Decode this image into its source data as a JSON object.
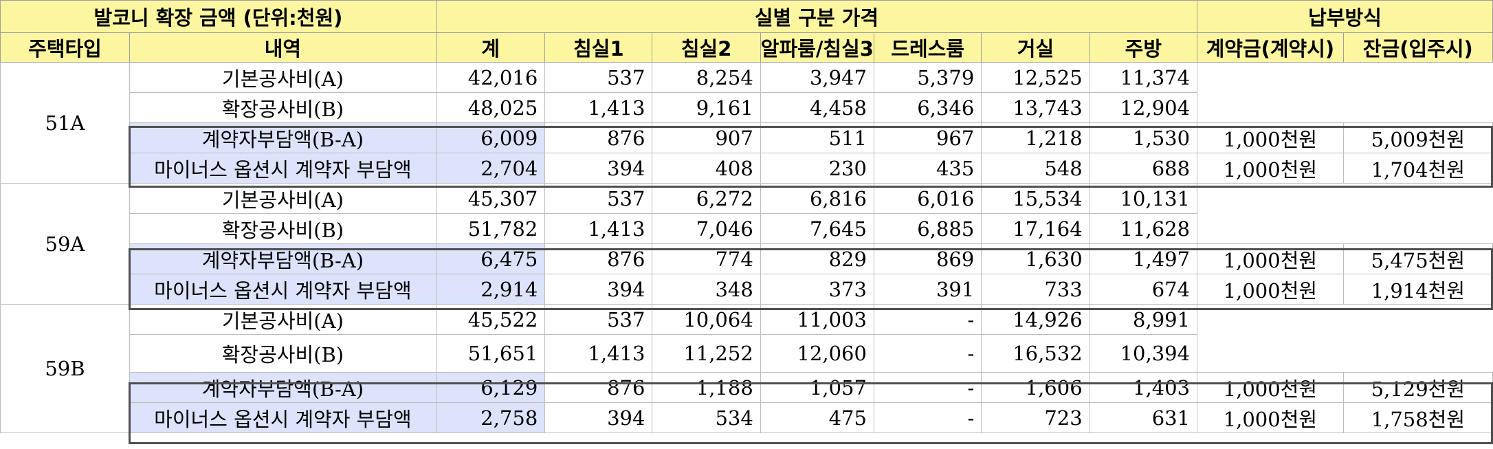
{
  "header": {
    "title": "발코니 확장 금액 (단위:천원)",
    "room_group": "실별 구분 가격",
    "payment_group": "납부방식",
    "columns": [
      "주택타입",
      "내역",
      "계",
      "침실1",
      "침실2",
      "알파룸/침실3",
      "드레스룸",
      "거실",
      "주방",
      "계약금(계약시)",
      "잔금(입주시)"
    ]
  },
  "groups": [
    {
      "type": "51A",
      "rows": [
        {
          "item": "기본공사비(A)",
          "total": "42,016",
          "bed1": "537",
          "bed2": "8,254",
          "alpha": "3,947",
          "dress": "5,379",
          "living": "12,525",
          "kitchen": "11,374",
          "deposit": "",
          "balance": ""
        },
        {
          "item": "확장공사비(B)",
          "total": "48,025",
          "bed1": "1,413",
          "bed2": "9,161",
          "alpha": "4,458",
          "dress": "6,346",
          "living": "13,743",
          "kitchen": "12,904",
          "deposit": "",
          "balance": ""
        },
        {
          "item": "계약자부담액(B-A)",
          "total": "6,009",
          "bed1": "876",
          "bed2": "907",
          "alpha": "511",
          "dress": "967",
          "living": "1,218",
          "kitchen": "1,530",
          "deposit": "1,000천원",
          "balance": "5,009천원"
        },
        {
          "item": "마이너스 옵션시 계약자 부담액",
          "total": "2,704",
          "bed1": "394",
          "bed2": "408",
          "alpha": "230",
          "dress": "435",
          "living": "548",
          "kitchen": "688",
          "deposit": "1,000천원",
          "balance": "1,704천원"
        }
      ]
    },
    {
      "type": "59A",
      "rows": [
        {
          "item": "기본공사비(A)",
          "total": "45,307",
          "bed1": "537",
          "bed2": "6,272",
          "alpha": "6,816",
          "dress": "6,016",
          "living": "15,534",
          "kitchen": "10,131",
          "deposit": "",
          "balance": ""
        },
        {
          "item": "확장공사비(B)",
          "total": "51,782",
          "bed1": "1,413",
          "bed2": "7,046",
          "alpha": "7,645",
          "dress": "6,885",
          "living": "17,164",
          "kitchen": "11,628",
          "deposit": "",
          "balance": ""
        },
        {
          "item": "계약자부담액(B-A)",
          "total": "6,475",
          "bed1": "876",
          "bed2": "774",
          "alpha": "829",
          "dress": "869",
          "living": "1,630",
          "kitchen": "1,497",
          "deposit": "1,000천원",
          "balance": "5,475천원"
        },
        {
          "item": "마이너스 옵션시 계약자 부담액",
          "total": "2,914",
          "bed1": "394",
          "bed2": "348",
          "alpha": "373",
          "dress": "391",
          "living": "733",
          "kitchen": "674",
          "deposit": "1,000천원",
          "balance": "1,914천원"
        }
      ]
    },
    {
      "type": "59B",
      "rows": [
        {
          "item": "기본공사비(A)",
          "total": "45,522",
          "bed1": "537",
          "bed2": "10,064",
          "alpha": "11,003",
          "dress": "-",
          "living": "14,926",
          "kitchen": "8,991",
          "deposit": "",
          "balance": ""
        },
        {
          "item": "확장공사비(B)",
          "total": "51,651",
          "bed1": "1,413",
          "bed2": "11,252",
          "alpha": "12,060",
          "dress": "-",
          "living": "16,532",
          "kitchen": "10,394",
          "deposit": "",
          "balance": ""
        },
        {
          "item": "계약자부담액(B-A)",
          "total": "6,129",
          "bed1": "876",
          "bed2": "1,188",
          "alpha": "1,057",
          "dress": "-",
          "living": "1,606",
          "kitchen": "1,403",
          "deposit": "1,000천원",
          "balance": "5,129천원"
        },
        {
          "item": "마이너스 옵션시 계약자 부담액",
          "total": "2,758",
          "bed1": "394",
          "bed2": "534",
          "alpha": "475",
          "dress": "-",
          "living": "723",
          "kitchen": "631",
          "deposit": "1,000천원",
          "balance": "1,758천원"
        }
      ]
    }
  ],
  "colors": {
    "header_bg": "#fdf6a0",
    "highlight_bg": "#dce3fb",
    "box_border": "#505050"
  }
}
